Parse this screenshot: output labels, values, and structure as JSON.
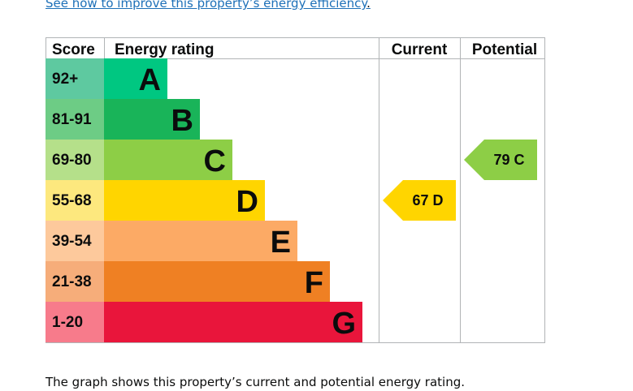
{
  "header": {
    "link_text": "See how to improve this property’s energy efficiency",
    "link_trailing": "."
  },
  "caption": "The graph shows this property’s current and potential energy rating.",
  "chart_data": {
    "type": "bar",
    "columns": {
      "score": "Score",
      "rating": "Energy rating",
      "current": "Current",
      "potential": "Potential"
    },
    "bands": [
      {
        "score": "92+",
        "letter": "A",
        "score_color": "#5ec9a0",
        "bar_color": "#00c781"
      },
      {
        "score": "81-91",
        "letter": "B",
        "score_color": "#6dcc85",
        "bar_color": "#19b459"
      },
      {
        "score": "69-80",
        "letter": "C",
        "score_color": "#b5e08a",
        "bar_color": "#8dce46"
      },
      {
        "score": "55-68",
        "letter": "D",
        "score_color": "#fde87e",
        "bar_color": "#ffd500"
      },
      {
        "score": "39-54",
        "letter": "E",
        "score_color": "#fdc99c",
        "bar_color": "#fcaa65"
      },
      {
        "score": "21-38",
        "letter": "F",
        "score_color": "#f6ad7a",
        "bar_color": "#ef8023"
      },
      {
        "score": "1-20",
        "letter": "G",
        "score_color": "#f77b8b",
        "bar_color": "#e9153b"
      }
    ],
    "current": {
      "value": 67,
      "letter": "D",
      "label": "67 D",
      "color": "#ffd500"
    },
    "potential": {
      "value": 79,
      "letter": "C",
      "label": "79 C",
      "color": "#8dce46"
    }
  }
}
